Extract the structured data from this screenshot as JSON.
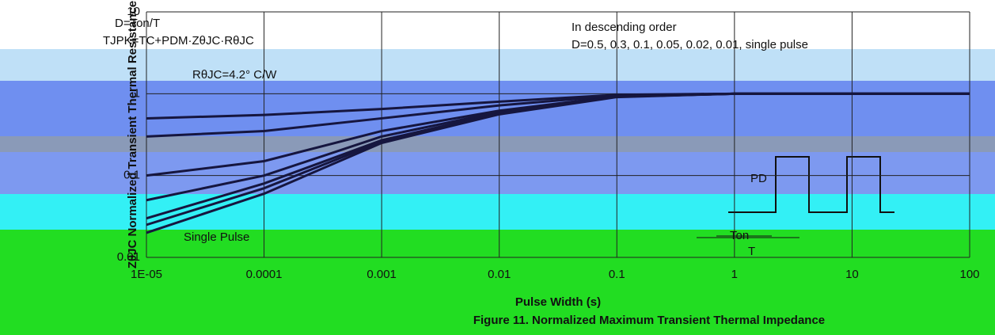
{
  "chart_data": {
    "type": "line",
    "log_x": true,
    "log_y": true,
    "grid": true,
    "x_label": "Pulse Width (s)",
    "y_label": "ZθJC Normalized Transient Thermal Resistance",
    "caption": "Figure 11. Normalized Maximum Transient Thermal Impedance",
    "annotations": [
      "D=Ton/T",
      "TJPK=TC+PDM·ZθJC·RθJC",
      "RθJC=4.2° C/W",
      "In descending order",
      "D=0.5, 0.3, 0.1, 0.05, 0.02, 0.01, single pulse",
      "Single Pulse",
      "PD",
      "Ton",
      "T"
    ],
    "x": [
      1e-05,
      0.0001,
      0.001,
      0.01,
      0.1,
      1,
      10,
      100
    ],
    "series": [
      {
        "color": "#16163f",
        "values": [
          0.5,
          0.55,
          0.65,
          0.8,
          0.97,
          1,
          1,
          1
        ]
      },
      {
        "color": "#16163f",
        "values": [
          0.3,
          0.35,
          0.5,
          0.72,
          0.95,
          1,
          1,
          1
        ]
      },
      {
        "color": "#16163f",
        "values": [
          0.1,
          0.15,
          0.35,
          0.62,
          0.93,
          1,
          1,
          1
        ]
      },
      {
        "color": "#16163f",
        "values": [
          0.05,
          0.1,
          0.3,
          0.6,
          0.92,
          1,
          1,
          1
        ]
      },
      {
        "color": "#16163f",
        "values": [
          0.03,
          0.08,
          0.27,
          0.58,
          0.92,
          1,
          1,
          1
        ]
      },
      {
        "color": "#16163f",
        "values": [
          0.025,
          0.07,
          0.26,
          0.57,
          0.92,
          1,
          1,
          1
        ]
      },
      {
        "color": "#16163f",
        "values": [
          0.02,
          0.06,
          0.25,
          0.56,
          0.91,
          1,
          1,
          1
        ]
      }
    ],
    "xlim": [
      1e-05,
      100
    ],
    "xticks": [
      {
        "value": 1e-05,
        "label": "1E-05"
      },
      0.0001,
      0.001,
      0.01,
      0.1,
      1,
      10,
      100
    ],
    "ylim": [
      0.01,
      10
    ],
    "yticks": [
      0.01,
      0.1,
      1,
      10
    ]
  }
}
